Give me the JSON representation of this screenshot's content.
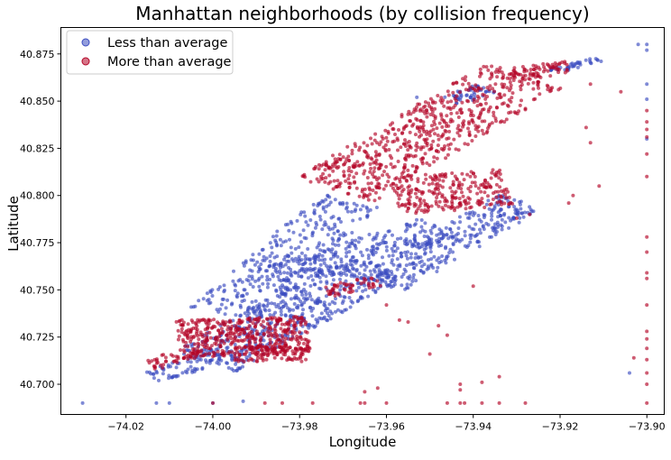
{
  "chart_data": {
    "type": "scatter",
    "title": "Manhattan neighborhoods (by collision frequency)",
    "xlabel": "Longitude",
    "ylabel": "Latitude",
    "xlim": [
      -74.035,
      -73.896
    ],
    "ylim": [
      40.684,
      40.889
    ],
    "xticks": [
      -74.02,
      -74.0,
      -73.98,
      -73.96,
      -73.94,
      -73.92,
      -73.9
    ],
    "xtick_labels": [
      "−74.02",
      "−74.00",
      "−73.98",
      "−73.96",
      "−73.94",
      "−73.92",
      "−73.90"
    ],
    "yticks": [
      40.7,
      40.725,
      40.75,
      40.775,
      40.8,
      40.825,
      40.85,
      40.875
    ],
    "ytick_labels": [
      "40.700",
      "40.725",
      "40.750",
      "40.775",
      "40.800",
      "40.825",
      "40.850",
      "40.875"
    ],
    "grid": false,
    "legend_position": "top-left",
    "series": [
      {
        "name": "Less than average",
        "color": "#3b4cc0",
        "clusters": [
          {
            "from": [
              -74.014,
              40.704
            ],
            "to": [
              -73.997,
              40.716
            ],
            "halfwidth": 0.0035,
            "n": 60
          },
          {
            "from": [
              -74.002,
              40.712
            ],
            "to": [
              -73.962,
              40.763
            ],
            "halfwidth": 0.009,
            "n": 520
          },
          {
            "from": [
              -73.998,
              40.737
            ],
            "to": [
              -73.968,
              40.798
            ],
            "halfwidth": 0.008,
            "n": 300
          },
          {
            "from": [
              -73.985,
              40.756
            ],
            "to": [
              -73.948,
              40.783
            ],
            "halfwidth": 0.0065,
            "n": 240
          },
          {
            "from": [
              -73.962,
              40.752
            ],
            "to": [
              -73.929,
              40.797
            ],
            "halfwidth": 0.0065,
            "n": 300
          },
          {
            "from": [
              -73.945,
              40.85
            ],
            "to": [
              -73.937,
              40.857
            ],
            "halfwidth": 0.003,
            "n": 50
          },
          {
            "from": [
              -73.922,
              40.866
            ],
            "to": [
              -73.911,
              40.872
            ],
            "halfwidth": 0.0015,
            "n": 40
          }
        ],
        "points": [
          [
            -74.03,
            40.69
          ],
          [
            -74.013,
            40.69
          ],
          [
            -74.01,
            40.69
          ],
          [
            -74.0,
            40.69
          ],
          [
            -73.993,
            40.691
          ],
          [
            -73.953,
            40.852
          ],
          [
            -73.9,
            40.88
          ],
          [
            -73.902,
            40.88
          ],
          [
            -73.9,
            40.877
          ],
          [
            -73.9,
            40.859
          ],
          [
            -73.9,
            40.851
          ],
          [
            -73.9,
            40.83
          ],
          [
            -73.904,
            40.706
          ]
        ]
      },
      {
        "name": "More than average",
        "color": "#b40426",
        "clusters": [
          {
            "from": [
              -74.015,
              40.71
            ],
            "to": [
              -74.003,
              40.718
            ],
            "halfwidth": 0.003,
            "n": 45
          },
          {
            "from": [
              -74.008,
              40.724
            ],
            "to": [
              -73.978,
              40.726
            ],
            "halfwidth": 0.01,
            "n": 460
          },
          {
            "from": [
              -73.995,
              40.716
            ],
            "to": [
              -73.978,
              40.716
            ],
            "halfwidth": 0.004,
            "n": 90
          },
          {
            "from": [
              -73.974,
              40.749
            ],
            "to": [
              -73.962,
              40.755
            ],
            "halfwidth": 0.003,
            "n": 50
          },
          {
            "from": [
              -73.972,
              40.803
            ],
            "to": [
              -73.928,
              40.864
            ],
            "halfwidth": 0.011,
            "n": 620
          },
          {
            "from": [
              -73.958,
              40.8
            ],
            "to": [
              -73.932,
              40.804
            ],
            "halfwidth": 0.01,
            "n": 260
          },
          {
            "from": [
              -73.931,
              40.864
            ],
            "to": [
              -73.918,
              40.868
            ],
            "halfwidth": 0.0035,
            "n": 70
          }
        ],
        "points": [
          [
            -74.0,
            40.69
          ],
          [
            -73.988,
            40.69
          ],
          [
            -73.984,
            40.69
          ],
          [
            -73.977,
            40.69
          ],
          [
            -73.966,
            40.69
          ],
          [
            -73.965,
            40.69
          ],
          [
            -73.96,
            40.69
          ],
          [
            -73.946,
            40.69
          ],
          [
            -73.943,
            40.69
          ],
          [
            -73.942,
            40.69
          ],
          [
            -73.938,
            40.69
          ],
          [
            -73.934,
            40.69
          ],
          [
            -73.928,
            40.69
          ],
          [
            -73.965,
            40.696
          ],
          [
            -73.962,
            40.698
          ],
          [
            -73.943,
            40.697
          ],
          [
            -73.943,
            40.7
          ],
          [
            -73.938,
            40.701
          ],
          [
            -73.934,
            40.704
          ],
          [
            -73.95,
            40.716
          ],
          [
            -73.946,
            40.726
          ],
          [
            -73.948,
            40.731
          ],
          [
            -73.957,
            40.734
          ],
          [
            -73.96,
            40.742
          ],
          [
            -73.955,
            40.733
          ],
          [
            -73.94,
            40.752
          ],
          [
            -73.93,
            40.788
          ],
          [
            -73.927,
            40.79
          ],
          [
            -73.918,
            40.796
          ],
          [
            -73.917,
            40.8
          ],
          [
            -73.914,
            40.836
          ],
          [
            -73.913,
            40.828
          ],
          [
            -73.911,
            40.805
          ],
          [
            -73.906,
            40.855
          ],
          [
            -73.9,
            40.845
          ],
          [
            -73.9,
            40.839
          ],
          [
            -73.9,
            40.835
          ],
          [
            -73.9,
            40.831
          ],
          [
            -73.9,
            40.822
          ],
          [
            -73.9,
            40.81
          ],
          [
            -73.9,
            40.778
          ],
          [
            -73.9,
            40.77
          ],
          [
            -73.9,
            40.759
          ],
          [
            -73.9,
            40.756
          ],
          [
            -73.9,
            40.742
          ],
          [
            -73.9,
            40.728
          ],
          [
            -73.9,
            40.724
          ],
          [
            -73.9,
            40.719
          ],
          [
            -73.9,
            40.713
          ],
          [
            -73.9,
            40.706
          ],
          [
            -73.9,
            40.7
          ],
          [
            -73.9,
            40.69
          ],
          [
            -73.903,
            40.714
          ],
          [
            -73.913,
            40.859
          ]
        ]
      }
    ]
  }
}
